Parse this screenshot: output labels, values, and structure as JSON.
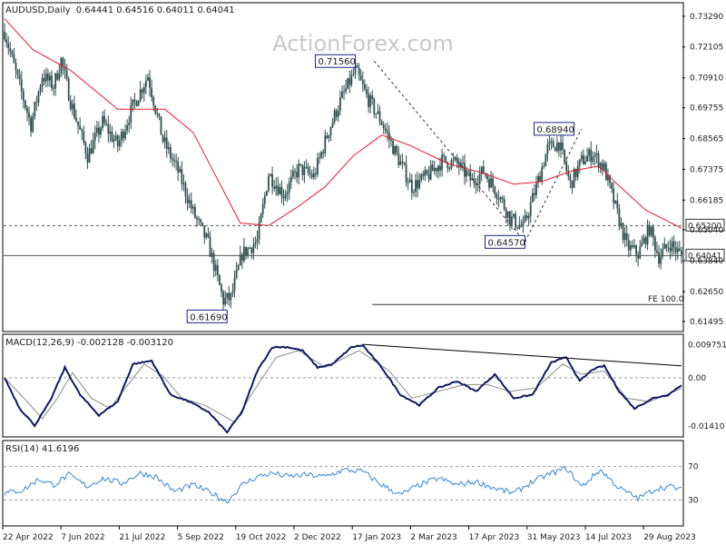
{
  "header": {
    "symbol": "AUDUSD,Daily",
    "ohlc": "0.64441 0.64516 0.64011 0.64041"
  },
  "watermark": "ActionForex.com",
  "colors": {
    "candle": "#2f4f4f",
    "ma": "#e8192c",
    "macd": "#0d1a66",
    "signal": "#8a8a8a",
    "rsi": "#2f86d9",
    "frame": "#000000",
    "text": "#1a1a1a",
    "label_bg": "#ffffff",
    "label_border": "#1a237e",
    "watermark": "#c8c8c8"
  },
  "chart_data": [
    {
      "type": "candlestick",
      "panel": "price",
      "x_labels": [
        "22 Apr 2022",
        "7 Jun 2022",
        "21 Jul 2022",
        "5 Sep 2022",
        "19 Oct 2022",
        "2 Dec 2022",
        "17 Jan 2023",
        "2 Mar 2023",
        "17 Apr 2023",
        "31 May 2023",
        "14 Jul 2023",
        "29 Aug 2023"
      ],
      "y_ticks": [
        "0.73290",
        "0.72105",
        "0.70910",
        "0.69755",
        "0.68565",
        "0.67375",
        "0.66185",
        "0.65040",
        "0.63840",
        "0.62650",
        "0.61495"
      ],
      "ylim": [
        0.6114,
        0.7378
      ],
      "bars": 360,
      "anchors": [
        {
          "i": 0,
          "p": 0.727
        },
        {
          "i": 6,
          "p": 0.711
        },
        {
          "i": 14,
          "p": 0.691
        },
        {
          "i": 20,
          "p": 0.71
        },
        {
          "i": 26,
          "p": 0.706
        },
        {
          "i": 30,
          "p": 0.716
        },
        {
          "i": 35,
          "p": 0.7
        },
        {
          "i": 44,
          "p": 0.679
        },
        {
          "i": 52,
          "p": 0.692
        },
        {
          "i": 60,
          "p": 0.683
        },
        {
          "i": 68,
          "p": 0.698
        },
        {
          "i": 76,
          "p": 0.71
        },
        {
          "i": 84,
          "p": 0.685
        },
        {
          "i": 92,
          "p": 0.673
        },
        {
          "i": 100,
          "p": 0.657
        },
        {
          "i": 108,
          "p": 0.645
        },
        {
          "i": 116,
          "p": 0.623
        },
        {
          "i": 120,
          "p": 0.624
        },
        {
          "i": 126,
          "p": 0.641
        },
        {
          "i": 134,
          "p": 0.646
        },
        {
          "i": 140,
          "p": 0.672
        },
        {
          "i": 148,
          "p": 0.664
        },
        {
          "i": 156,
          "p": 0.674
        },
        {
          "i": 164,
          "p": 0.671
        },
        {
          "i": 172,
          "p": 0.689
        },
        {
          "i": 178,
          "p": 0.7
        },
        {
          "i": 186,
          "p": 0.712
        },
        {
          "i": 192,
          "p": 0.702
        },
        {
          "i": 200,
          "p": 0.692
        },
        {
          "i": 208,
          "p": 0.679
        },
        {
          "i": 216,
          "p": 0.667
        },
        {
          "i": 224,
          "p": 0.671
        },
        {
          "i": 232,
          "p": 0.677
        },
        {
          "i": 240,
          "p": 0.676
        },
        {
          "i": 248,
          "p": 0.669
        },
        {
          "i": 254,
          "p": 0.673
        },
        {
          "i": 262,
          "p": 0.664
        },
        {
          "i": 268,
          "p": 0.655
        },
        {
          "i": 275,
          "p": 0.651
        },
        {
          "i": 282,
          "p": 0.667
        },
        {
          "i": 288,
          "p": 0.682
        },
        {
          "i": 294,
          "p": 0.684
        },
        {
          "i": 300,
          "p": 0.668
        },
        {
          "i": 306,
          "p": 0.677
        },
        {
          "i": 312,
          "p": 0.68
        },
        {
          "i": 318,
          "p": 0.674
        },
        {
          "i": 324,
          "p": 0.659
        },
        {
          "i": 330,
          "p": 0.644
        },
        {
          "i": 336,
          "p": 0.641
        },
        {
          "i": 342,
          "p": 0.651
        },
        {
          "i": 347,
          "p": 0.64
        },
        {
          "i": 353,
          "p": 0.645
        },
        {
          "i": 359,
          "p": 0.6404
        }
      ],
      "ma_anchors": [
        {
          "i": 0,
          "p": 0.732
        },
        {
          "i": 15,
          "p": 0.72
        },
        {
          "i": 35,
          "p": 0.712
        },
        {
          "i": 60,
          "p": 0.697
        },
        {
          "i": 85,
          "p": 0.697
        },
        {
          "i": 100,
          "p": 0.688
        },
        {
          "i": 110,
          "p": 0.674
        },
        {
          "i": 125,
          "p": 0.653
        },
        {
          "i": 140,
          "p": 0.652
        },
        {
          "i": 155,
          "p": 0.659
        },
        {
          "i": 170,
          "p": 0.667
        },
        {
          "i": 185,
          "p": 0.679
        },
        {
          "i": 200,
          "p": 0.687
        },
        {
          "i": 215,
          "p": 0.683
        },
        {
          "i": 235,
          "p": 0.676
        },
        {
          "i": 255,
          "p": 0.672
        },
        {
          "i": 270,
          "p": 0.668
        },
        {
          "i": 285,
          "p": 0.669
        },
        {
          "i": 300,
          "p": 0.673
        },
        {
          "i": 315,
          "p": 0.675
        },
        {
          "i": 325,
          "p": 0.668
        },
        {
          "i": 340,
          "p": 0.658
        },
        {
          "i": 359,
          "p": 0.651
        }
      ],
      "levels": [
        {
          "value": 0.652,
          "style": "dashed",
          "label": "0.65200"
        },
        {
          "value": 0.64041,
          "style": "solid",
          "label": "0.64041"
        }
      ],
      "labels": [
        {
          "text": "0.71560",
          "i": 186,
          "p": 0.7156
        },
        {
          "text": "0.61690",
          "i": 118,
          "p": 0.6169
        },
        {
          "text": "0.68940",
          "i": 302,
          "p": 0.6894
        },
        {
          "text": "0.64570",
          "i": 276,
          "p": 0.6457
        }
      ],
      "projection_lines": [
        [
          {
            "i": 196,
            "p": 0.7156
          },
          {
            "i": 276,
            "p": 0.6457
          }
        ],
        [
          {
            "i": 276,
            "p": 0.6457
          },
          {
            "i": 306,
            "p": 0.6894
          }
        ]
      ],
      "fe_line": {
        "value": 0.6215,
        "from": 195,
        "label": "FE 100.0"
      }
    },
    {
      "type": "line",
      "panel": "macd",
      "name": "MACD(12,26,9) -0.002128 -0.003120",
      "y_ticks": [
        "0.009751",
        "0.00",
        "-0.014107"
      ],
      "ylim": [
        -0.0171,
        0.0125
      ],
      "macd_anchors": [
        {
          "i": 0,
          "v": 0.0
        },
        {
          "i": 8,
          "v": -0.009
        },
        {
          "i": 16,
          "v": -0.014
        },
        {
          "i": 24,
          "v": -0.007
        },
        {
          "i": 32,
          "v": 0.003
        },
        {
          "i": 40,
          "v": -0.005
        },
        {
          "i": 50,
          "v": -0.011
        },
        {
          "i": 60,
          "v": -0.007
        },
        {
          "i": 68,
          "v": 0.004
        },
        {
          "i": 78,
          "v": 0.005
        },
        {
          "i": 88,
          "v": -0.005
        },
        {
          "i": 98,
          "v": -0.007
        },
        {
          "i": 108,
          "v": -0.01
        },
        {
          "i": 118,
          "v": -0.016
        },
        {
          "i": 126,
          "v": -0.01
        },
        {
          "i": 134,
          "v": 0.002
        },
        {
          "i": 142,
          "v": 0.009
        },
        {
          "i": 150,
          "v": 0.009
        },
        {
          "i": 158,
          "v": 0.008
        },
        {
          "i": 166,
          "v": 0.003
        },
        {
          "i": 174,
          "v": 0.004
        },
        {
          "i": 184,
          "v": 0.009
        },
        {
          "i": 190,
          "v": 0.0095
        },
        {
          "i": 200,
          "v": 0.003
        },
        {
          "i": 210,
          "v": -0.005
        },
        {
          "i": 220,
          "v": -0.008
        },
        {
          "i": 230,
          "v": -0.003
        },
        {
          "i": 240,
          "v": -0.001
        },
        {
          "i": 250,
          "v": -0.004
        },
        {
          "i": 260,
          "v": 0.001
        },
        {
          "i": 270,
          "v": -0.006
        },
        {
          "i": 280,
          "v": -0.005
        },
        {
          "i": 290,
          "v": 0.0045
        },
        {
          "i": 298,
          "v": 0.006
        },
        {
          "i": 305,
          "v": -0.001
        },
        {
          "i": 312,
          "v": 0.0025
        },
        {
          "i": 318,
          "v": 0.0035
        },
        {
          "i": 326,
          "v": -0.004
        },
        {
          "i": 334,
          "v": -0.009
        },
        {
          "i": 344,
          "v": -0.006
        },
        {
          "i": 352,
          "v": -0.005
        },
        {
          "i": 359,
          "v": -0.0021
        }
      ],
      "signal_anchors": [
        {
          "i": 0,
          "v": 0.0
        },
        {
          "i": 12,
          "v": -0.007
        },
        {
          "i": 20,
          "v": -0.012
        },
        {
          "i": 28,
          "v": -0.006
        },
        {
          "i": 36,
          "v": 0.0015
        },
        {
          "i": 46,
          "v": -0.006
        },
        {
          "i": 56,
          "v": -0.009
        },
        {
          "i": 64,
          "v": -0.003
        },
        {
          "i": 74,
          "v": 0.004
        },
        {
          "i": 84,
          "v": 0.0005
        },
        {
          "i": 94,
          "v": -0.006
        },
        {
          "i": 106,
          "v": -0.008
        },
        {
          "i": 122,
          "v": -0.013
        },
        {
          "i": 132,
          "v": -0.004
        },
        {
          "i": 144,
          "v": 0.006
        },
        {
          "i": 156,
          "v": 0.008
        },
        {
          "i": 170,
          "v": 0.003
        },
        {
          "i": 188,
          "v": 0.008
        },
        {
          "i": 204,
          "v": 0.002
        },
        {
          "i": 216,
          "v": -0.006
        },
        {
          "i": 230,
          "v": -0.004
        },
        {
          "i": 244,
          "v": -0.002
        },
        {
          "i": 256,
          "v": -0.002
        },
        {
          "i": 268,
          "v": -0.004
        },
        {
          "i": 282,
          "v": -0.003
        },
        {
          "i": 296,
          "v": 0.004
        },
        {
          "i": 306,
          "v": 0.001
        },
        {
          "i": 318,
          "v": 0.002
        },
        {
          "i": 330,
          "v": -0.006
        },
        {
          "i": 342,
          "v": -0.007
        },
        {
          "i": 359,
          "v": -0.0031
        }
      ],
      "trendline": [
        {
          "i": 190,
          "v": 0.0098
        },
        {
          "i": 359,
          "v": 0.0035
        }
      ]
    },
    {
      "type": "line",
      "panel": "rsi",
      "name": "RSI(14) 41.6196",
      "y_ticks": [
        "70",
        "30"
      ],
      "ylim": [
        0,
        100
      ],
      "rsi_anchors": [
        {
          "i": 0,
          "v": 38
        },
        {
          "i": 10,
          "v": 42
        },
        {
          "i": 18,
          "v": 55
        },
        {
          "i": 26,
          "v": 48
        },
        {
          "i": 34,
          "v": 60
        },
        {
          "i": 44,
          "v": 46
        },
        {
          "i": 52,
          "v": 56
        },
        {
          "i": 62,
          "v": 50
        },
        {
          "i": 72,
          "v": 62
        },
        {
          "i": 80,
          "v": 58
        },
        {
          "i": 90,
          "v": 40
        },
        {
          "i": 100,
          "v": 48
        },
        {
          "i": 110,
          "v": 38
        },
        {
          "i": 118,
          "v": 28
        },
        {
          "i": 126,
          "v": 48
        },
        {
          "i": 134,
          "v": 58
        },
        {
          "i": 142,
          "v": 62
        },
        {
          "i": 150,
          "v": 58
        },
        {
          "i": 160,
          "v": 60
        },
        {
          "i": 170,
          "v": 58
        },
        {
          "i": 180,
          "v": 66
        },
        {
          "i": 190,
          "v": 64
        },
        {
          "i": 200,
          "v": 48
        },
        {
          "i": 210,
          "v": 36
        },
        {
          "i": 220,
          "v": 48
        },
        {
          "i": 230,
          "v": 56
        },
        {
          "i": 240,
          "v": 48
        },
        {
          "i": 250,
          "v": 52
        },
        {
          "i": 260,
          "v": 44
        },
        {
          "i": 270,
          "v": 38
        },
        {
          "i": 280,
          "v": 52
        },
        {
          "i": 290,
          "v": 62
        },
        {
          "i": 298,
          "v": 68
        },
        {
          "i": 306,
          "v": 46
        },
        {
          "i": 316,
          "v": 66
        },
        {
          "i": 326,
          "v": 44
        },
        {
          "i": 336,
          "v": 32
        },
        {
          "i": 346,
          "v": 44
        },
        {
          "i": 354,
          "v": 46
        },
        {
          "i": 359,
          "v": 41.6
        }
      ],
      "levels": [
        70,
        30
      ]
    }
  ]
}
